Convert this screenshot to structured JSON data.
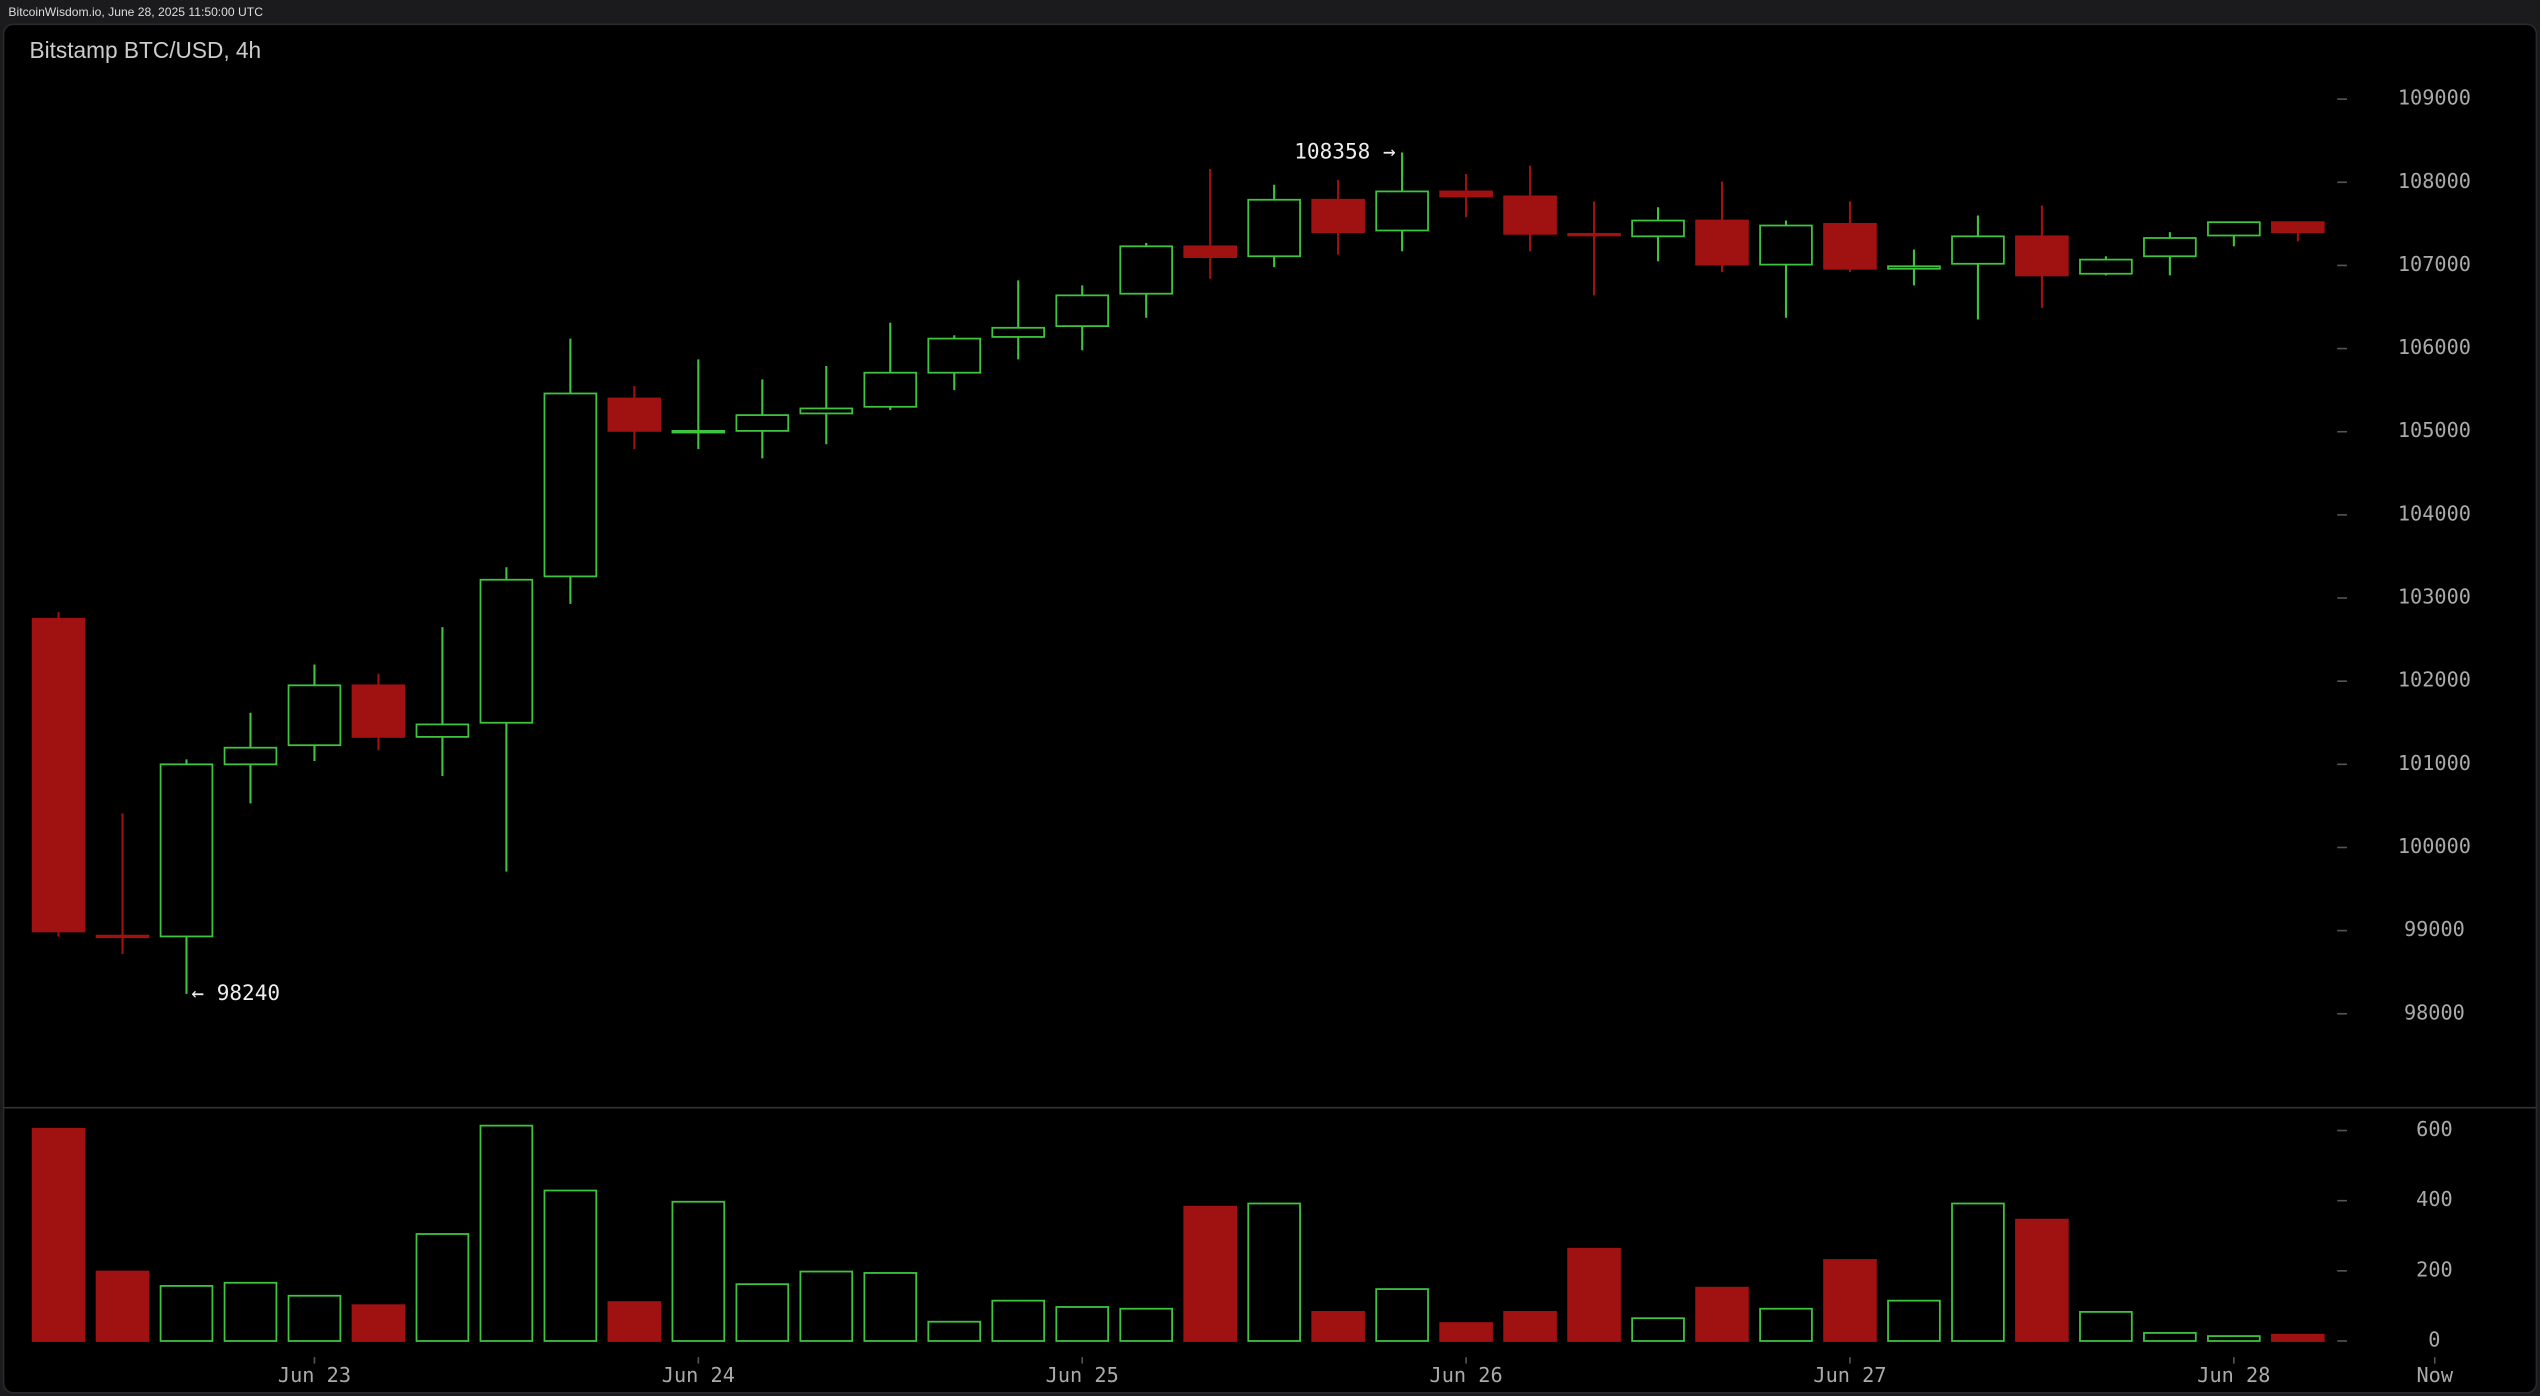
{
  "header": "BitcoinWisdom.io, June 28, 2025 11:50:00 UTC",
  "chart_data": [
    {
      "type": "candlestick",
      "title": "Bitstamp BTC/USD, 4h",
      "up_color": "#3ec43e",
      "down_color": "#a01212",
      "open": [
        102750,
        98940,
        98930,
        101000,
        101230,
        101950,
        101330,
        101500,
        103260,
        105400,
        104990,
        105010,
        105220,
        105300,
        105710,
        106140,
        106270,
        106660,
        107230,
        107110,
        107790,
        107420,
        107890,
        107830,
        107380,
        107350,
        107540,
        107010,
        107500,
        106960,
        107020,
        107350,
        106900,
        107110,
        107360,
        107520
      ],
      "high": [
        102830,
        100410,
        101060,
        101620,
        102200,
        102090,
        102650,
        103370,
        106120,
        105550,
        105870,
        105630,
        105790,
        106310,
        106160,
        106820,
        106760,
        107270,
        108160,
        107970,
        108030,
        108358,
        108100,
        108200,
        107770,
        107700,
        108010,
        107540,
        107770,
        107190,
        107600,
        107720,
        107110,
        107400,
        107520,
        107520
      ],
      "low": [
        98930,
        98720,
        98240,
        100530,
        101040,
        101170,
        100860,
        99710,
        102930,
        104790,
        104790,
        104680,
        104850,
        105260,
        105500,
        105870,
        105980,
        106370,
        106840,
        106980,
        107130,
        107170,
        107580,
        107170,
        106640,
        107050,
        106920,
        106370,
        106920,
        106760,
        106350,
        106490,
        106880,
        106880,
        107230,
        107290
      ],
      "close": [
        98990,
        98930,
        101000,
        101200,
        101950,
        101330,
        101480,
        103220,
        105460,
        105010,
        105010,
        105200,
        105280,
        105710,
        106120,
        106250,
        106640,
        107230,
        107100,
        107790,
        107400,
        107890,
        107830,
        107380,
        107360,
        107540,
        107010,
        107480,
        106960,
        106990,
        107350,
        106880,
        107070,
        107330,
        107520,
        107400
      ],
      "ylim": [
        96870,
        109900
      ],
      "yticks": [
        98000,
        99000,
        100000,
        101000,
        102000,
        103000,
        104000,
        105000,
        106000,
        107000,
        108000,
        109000
      ],
      "annotations": [
        {
          "text": "108358 →",
          "x": 21,
          "value": 108358,
          "side": "left"
        },
        {
          "text": "← 98240",
          "x": 2,
          "value": 98240,
          "side": "right"
        }
      ]
    },
    {
      "type": "bar",
      "name": "volume",
      "values": [
        605,
        198,
        157,
        166,
        129,
        102,
        305,
        614,
        429,
        111,
        397,
        162,
        198,
        194,
        55,
        115,
        97,
        92,
        383,
        392,
        83,
        148,
        51,
        83,
        263,
        65,
        152,
        92,
        231,
        115,
        392,
        346,
        83,
        23,
        14,
        18
      ],
      "ylim": [
        -46,
        665
      ],
      "yticks": [
        0,
        200,
        400,
        600
      ],
      "xlim": [
        -0.91,
        35.54
      ],
      "xticks": [
        {
          "value": 4,
          "label": "Jun 23"
        },
        {
          "value": 10,
          "label": "Jun 24"
        },
        {
          "value": 16,
          "label": "Jun 25"
        },
        {
          "value": 22,
          "label": "Jun 26"
        },
        {
          "value": 28,
          "label": "Jun 27"
        },
        {
          "value": 34,
          "label": "Jun 28"
        },
        {
          "value": 37.14,
          "label": "Now"
        }
      ]
    }
  ]
}
